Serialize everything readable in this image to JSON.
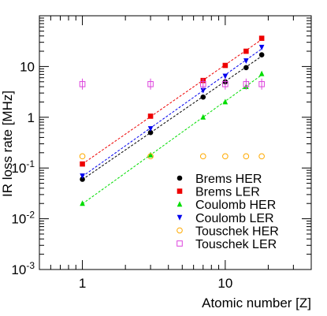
{
  "chart_data": {
    "type": "scatter",
    "xlabel": "Atomic number [Z]",
    "ylabel": "IR loss rate [MHz]",
    "x_scale": "log",
    "y_scale": "log",
    "xlim": [
      0.5,
      40
    ],
    "ylim": [
      0.001,
      100
    ],
    "x_ticks": [
      {
        "value": 1,
        "label": "1"
      },
      {
        "value": 10,
        "label": "10"
      }
    ],
    "y_ticks": [
      {
        "value": 0.001,
        "base": "10",
        "exp": "-3"
      },
      {
        "value": 0.01,
        "base": "10",
        "exp": "-2"
      },
      {
        "value": 0.1,
        "base": "10",
        "exp": "-1"
      },
      {
        "value": 1,
        "base": "1",
        "exp": ""
      },
      {
        "value": 10,
        "base": "10",
        "exp": ""
      }
    ],
    "grid": false,
    "legend_position": "bottom-right",
    "series": [
      {
        "name": "Brems HER",
        "marker": "circle",
        "color": "#000000",
        "fit": true,
        "points": [
          [
            1,
            0.06
          ],
          [
            3,
            0.5
          ],
          [
            7,
            2.5
          ],
          [
            10,
            5.0
          ],
          [
            14,
            9.5
          ],
          [
            18,
            17
          ]
        ]
      },
      {
        "name": "Brems LER",
        "marker": "square",
        "color": "#ee0000",
        "fit": true,
        "points": [
          [
            1,
            0.12
          ],
          [
            3,
            1.05
          ],
          [
            7,
            5.3
          ],
          [
            10,
            10.5
          ],
          [
            14,
            20
          ],
          [
            18,
            36
          ]
        ]
      },
      {
        "name": "Coulomb HER",
        "marker": "triangle-up",
        "color": "#00dd00",
        "fit": true,
        "points": [
          [
            1,
            0.02
          ],
          [
            3,
            0.18
          ],
          [
            7,
            1.0
          ],
          [
            10,
            2.0
          ],
          [
            14,
            4.0
          ],
          [
            18,
            7.2
          ]
        ]
      },
      {
        "name": "Coulomb LER",
        "marker": "triangle-down",
        "color": "#0000ee",
        "fit": true,
        "points": [
          [
            1,
            0.07
          ],
          [
            3,
            0.6
          ],
          [
            7,
            3.4
          ],
          [
            10,
            6.5
          ],
          [
            14,
            13
          ],
          [
            18,
            24
          ]
        ]
      },
      {
        "name": "Touschek HER",
        "marker": "open-circle",
        "color": "#ffaa00",
        "fit": false,
        "points": [
          [
            1,
            0.17
          ],
          [
            3,
            0.17
          ],
          [
            7,
            0.17
          ],
          [
            10,
            0.17
          ],
          [
            14,
            0.17
          ],
          [
            18,
            0.17
          ]
        ]
      },
      {
        "name": "Touschek LER",
        "marker": "open-square",
        "color": "#dd44dd",
        "fit": false,
        "points": [
          [
            1,
            4.5
          ],
          [
            3,
            4.5
          ],
          [
            7,
            4.5
          ],
          [
            10,
            4.5
          ],
          [
            14,
            4.5
          ],
          [
            18,
            4.5
          ]
        ]
      }
    ]
  }
}
